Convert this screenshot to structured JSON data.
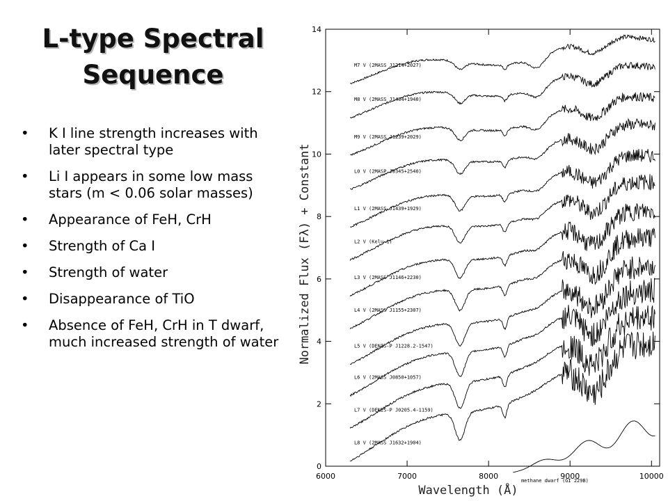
{
  "slide": {
    "title_line1": "L-type Spectral",
    "title_line2": "Sequence",
    "bullet_glyph": "•",
    "bullets": [
      "K I line strength increases with later spectral type",
      "Li I appears in some low mass stars (m < 0.06 solar masses)",
      "Appearance of  FeH, CrH",
      "Strength of Ca I",
      "Strength of water",
      "Disappearance of TiO",
      "Absence of FeH, CrH in T dwarf, much increased strength of water"
    ]
  },
  "chart_data": {
    "type": "line",
    "xlabel": "Wavelength (Å)",
    "ylabel": "Normalized Flux (Fλ) + Constant",
    "xlim": [
      6000,
      10100
    ],
    "ylim": [
      0,
      14
    ],
    "x_ticks": [
      6000,
      7000,
      8000,
      9000,
      10000
    ],
    "y_ticks": [
      0,
      2,
      4,
      6,
      8,
      10,
      12,
      14
    ],
    "series": [
      {
        "name": "M7 V (2MASS J1214+2027)",
        "offset": 12.45
      },
      {
        "name": "M8 V (2MASS J1434+1940)",
        "offset": 11.35
      },
      {
        "name": "M9 V (2MASS J1239+2029)",
        "offset": 10.15
      },
      {
        "name": "L0 V (2MASP J0345+2540)",
        "offset": 9.05
      },
      {
        "name": "L1 V (2MASS J1439+1929)",
        "offset": 7.85
      },
      {
        "name": "L2 V (Kelu-1)",
        "offset": 6.8
      },
      {
        "name": "L3 V (2MASS J1146+2230)",
        "offset": 5.65
      },
      {
        "name": "L4 V (2MASS J1155+2307)",
        "offset": 4.6
      },
      {
        "name": "L5 V (DENIS-P J1228.2-1547)",
        "offset": 3.45
      },
      {
        "name": "L6 V (2MASS J0850+1057)",
        "offset": 2.45
      },
      {
        "name": "L7 V (DENIS-P J0205.4-1159)",
        "offset": 1.4
      },
      {
        "name": "L8 V (2MASS J1632+1904)",
        "offset": 0.35
      },
      {
        "name": "methane dwarf (GI 229B)",
        "offset": -0.2
      }
    ]
  }
}
